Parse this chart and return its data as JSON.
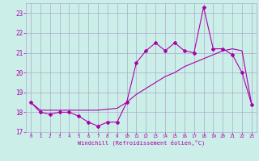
{
  "xlabel": "Windchill (Refroidissement éolien,°C)",
  "bg_color": "#cceee8",
  "grid_color": "#aaaacc",
  "line_color": "#aa00aa",
  "x_hours": [
    0,
    1,
    2,
    3,
    4,
    5,
    6,
    7,
    8,
    9,
    10,
    11,
    12,
    13,
    14,
    15,
    16,
    17,
    18,
    19,
    20,
    21,
    22,
    23
  ],
  "windchill": [
    18.5,
    18.0,
    17.9,
    18.0,
    18.0,
    17.8,
    17.5,
    17.3,
    17.5,
    17.5,
    18.5,
    20.5,
    21.1,
    21.5,
    21.1,
    21.5,
    21.1,
    21.0,
    23.3,
    21.2,
    21.2,
    20.9,
    20.0,
    18.4
  ],
  "temperature": [
    18.5,
    18.1,
    18.1,
    18.1,
    18.1,
    18.1,
    18.1,
    18.1,
    18.15,
    18.2,
    18.5,
    18.9,
    19.2,
    19.5,
    19.8,
    20.0,
    20.3,
    20.5,
    20.7,
    20.9,
    21.1,
    21.2,
    21.1,
    18.4
  ],
  "ylim": [
    17.0,
    23.5
  ],
  "yticks": [
    17,
    18,
    19,
    20,
    21,
    22,
    23
  ],
  "xticks": [
    0,
    1,
    2,
    3,
    4,
    5,
    6,
    7,
    8,
    9,
    10,
    11,
    12,
    13,
    14,
    15,
    16,
    17,
    18,
    19,
    20,
    21,
    22,
    23
  ]
}
